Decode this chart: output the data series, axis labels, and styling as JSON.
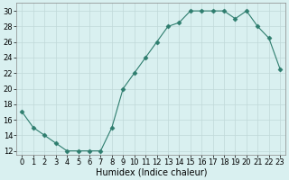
{
  "x": [
    0,
    1,
    2,
    3,
    4,
    5,
    6,
    7,
    8,
    9,
    10,
    11,
    12,
    13,
    14,
    15,
    16,
    17,
    18,
    19,
    20,
    21,
    22,
    23
  ],
  "y": [
    17,
    15,
    14,
    13,
    12,
    12,
    12,
    12,
    15,
    20,
    22,
    24,
    26,
    28,
    28.5,
    30,
    30,
    30,
    30,
    29,
    30,
    28,
    26.5,
    22.5
  ],
  "line_color": "#2e7d6e",
  "marker": "D",
  "marker_size": 2.5,
  "bg_color": "#d9f0f0",
  "grid_color": "#c0d8d8",
  "xlabel": "Humidex (Indice chaleur)",
  "xlim": [
    -0.5,
    23.5
  ],
  "ylim": [
    11.5,
    31
  ],
  "yticks": [
    12,
    14,
    16,
    18,
    20,
    22,
    24,
    26,
    28,
    30
  ],
  "xticks": [
    0,
    1,
    2,
    3,
    4,
    5,
    6,
    7,
    8,
    9,
    10,
    11,
    12,
    13,
    14,
    15,
    16,
    17,
    18,
    19,
    20,
    21,
    22,
    23
  ],
  "xlabel_fontsize": 7,
  "tick_fontsize": 6,
  "linewidth": 0.8
}
